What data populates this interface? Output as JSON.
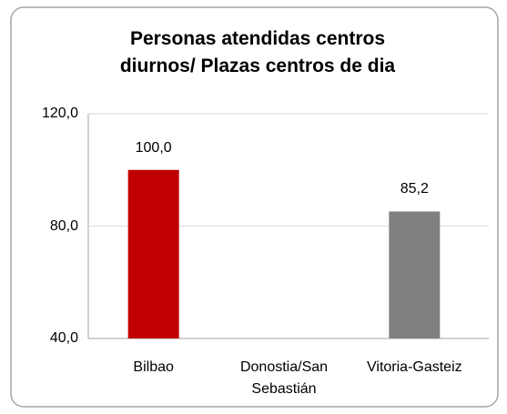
{
  "chart_data": {
    "type": "bar",
    "title": "Personas atendidas centros diurnos/ Plazas centros de dia",
    "categories": [
      "Bilbao",
      "Donostia/San Sebastián",
      "Vitoria-Gasteiz"
    ],
    "values": [
      100,
      null,
      85.2
    ],
    "value_labels": [
      "100,0",
      null,
      "85,2"
    ],
    "colors": [
      "#c00000",
      null,
      "#808080"
    ],
    "ylim": [
      40,
      120
    ],
    "yticks": [
      {
        "value": 40,
        "label": "40,0"
      },
      {
        "value": 80,
        "label": "80,0"
      },
      {
        "value": 120,
        "label": "120,0"
      }
    ],
    "grid": true
  }
}
